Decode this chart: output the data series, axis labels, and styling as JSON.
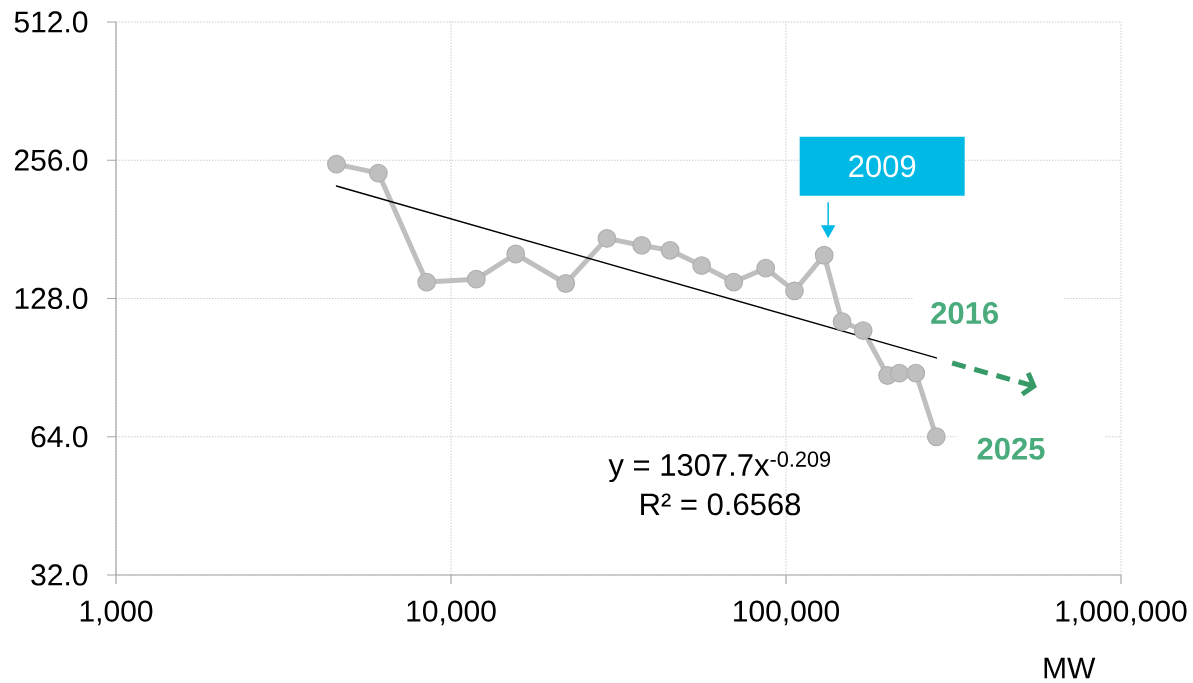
{
  "chart_data": {
    "type": "line",
    "xlabel": "MW",
    "log": "xy",
    "grid": true,
    "marker": "circle",
    "line_style": "solid",
    "xlim": [
      1000,
      1000000
    ],
    "ylim": [
      32,
      512
    ],
    "xticks": [
      {
        "value": 1000,
        "label": "1,000"
      },
      {
        "value": 10000,
        "label": "10,000"
      },
      {
        "value": 100000,
        "label": "100,000"
      },
      {
        "value": 1000000,
        "label": "1,000,000"
      }
    ],
    "yticks": [
      {
        "value": 32,
        "label": "32.0"
      },
      {
        "value": 64,
        "label": "64.0"
      },
      {
        "value": 128,
        "label": "128.0"
      },
      {
        "value": 256,
        "label": "256.0"
      },
      {
        "value": 512,
        "label": "512.0"
      }
    ],
    "series": [
      {
        "color": "#bfbfbf",
        "x": [
          4550,
          6070,
          8460,
          11900,
          15600,
          22000,
          29200,
          37100,
          45100,
          56000,
          69800,
          87000,
          106000,
          130000,
          147000,
          170000,
          201000,
          218000,
          244000,
          281000
        ],
        "values": [
          251,
          240,
          139,
          141,
          160,
          138,
          173,
          167,
          163,
          151,
          139,
          149,
          133,
          159,
          114,
          109,
          87,
          88,
          88,
          64
        ]
      },
      {
        "color": "#000000",
        "marker": "none",
        "x": [
          4550,
          281000
        ],
        "values": [
          225,
          95
        ]
      }
    ],
    "annotations": [
      {
        "text": "2009",
        "x": 130000,
        "y": 159
      },
      "2016",
      {
        "text": "2025",
        "x": 281000,
        "y": 64
      },
      "y = 1307.7x$^{-0.209}$",
      "R² = 0.6568"
    ]
  }
}
